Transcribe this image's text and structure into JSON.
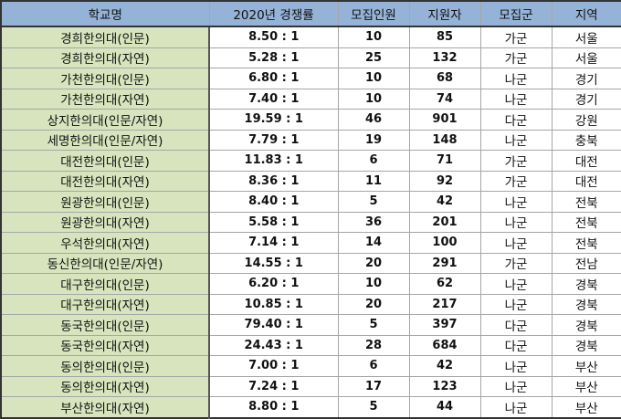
{
  "colors": {
    "header_bg": "#95b3d7",
    "name_col_bg": "#d7e4bd"
  },
  "headers": [
    "학교명",
    "2020년 경쟁률",
    "모집인원",
    "지원자",
    "모집군",
    "지역"
  ],
  "rows": [
    [
      "경희한의대(인문)",
      "8.50 : 1",
      "10",
      "85",
      "가군",
      "서울"
    ],
    [
      "경희한의대(자연)",
      "5.28 : 1",
      "25",
      "132",
      "가군",
      "서울"
    ],
    [
      "가천한의대(인문)",
      "6.80 : 1",
      "10",
      "68",
      "나군",
      "경기"
    ],
    [
      "가천한의대(자연)",
      "7.40 : 1",
      "10",
      "74",
      "나군",
      "경기"
    ],
    [
      "상지한의대(인문/자연)",
      "19.59 : 1",
      "46",
      "901",
      "다군",
      "강원"
    ],
    [
      "세명한의대(인문/자연)",
      "7.79 : 1",
      "19",
      "148",
      "나군",
      "충북"
    ],
    [
      "대전한의대(인문)",
      "11.83 : 1",
      "6",
      "71",
      "가군",
      "대전"
    ],
    [
      "대전한의대(자연)",
      "8.36 : 1",
      "11",
      "92",
      "가군",
      "대전"
    ],
    [
      "원광한의대(인문)",
      "8.40 : 1",
      "5",
      "42",
      "나군",
      "전북"
    ],
    [
      "원광한의대(자연)",
      "5.58 : 1",
      "36",
      "201",
      "나군",
      "전북"
    ],
    [
      "우석한의대(자연)",
      "7.14 : 1",
      "14",
      "100",
      "나군",
      "전북"
    ],
    [
      "동신한의대(인문/자연)",
      "14.55 : 1",
      "20",
      "291",
      "가군",
      "전남"
    ],
    [
      "대구한의대(인문)",
      "6.20 : 1",
      "10",
      "62",
      "나군",
      "경북"
    ],
    [
      "대구한의대(자연)",
      "10.85 : 1",
      "20",
      "217",
      "나군",
      "경북"
    ],
    [
      "동국한의대(인문)",
      "79.40 : 1",
      "5",
      "397",
      "다군",
      "경북"
    ],
    [
      "동국한의대(자연)",
      "24.43 : 1",
      "28",
      "684",
      "다군",
      "경북"
    ],
    [
      "동의한의대(인문)",
      "7.00 : 1",
      "6",
      "42",
      "나군",
      "부산"
    ],
    [
      "동의한의대(자연)",
      "7.24 : 1",
      "17",
      "123",
      "나군",
      "부산"
    ],
    [
      "부산한의대(자연)",
      "8.80 : 1",
      "5",
      "44",
      "나군",
      "부산"
    ]
  ]
}
